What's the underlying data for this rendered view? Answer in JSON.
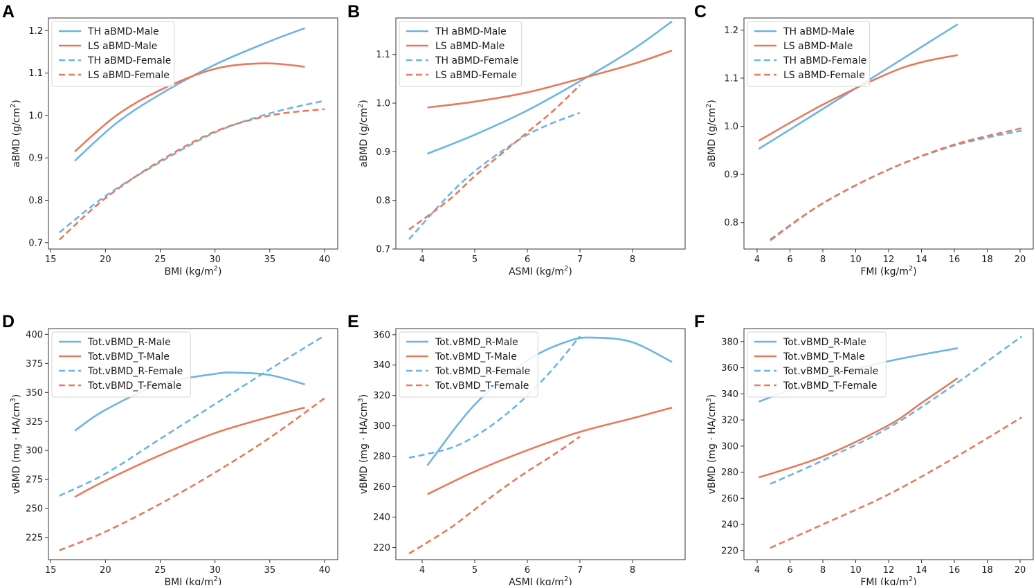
{
  "colors": {
    "blue": "#6cb4e4",
    "orange": "#e8795a"
  },
  "chart_data": [
    {
      "panel": "A",
      "type": "line",
      "xlabel": "BMI (kg/m²)",
      "ylabel": "aBMD (g/cm²)",
      "xlim": [
        14.8,
        41.2
      ],
      "ylim": [
        0.685,
        1.23
      ],
      "xticks": [
        15,
        20,
        25,
        30,
        35,
        40
      ],
      "yticks": [
        0.7,
        0.8,
        0.9,
        1.0,
        1.1,
        1.2
      ],
      "ydecimals": 1,
      "grid": false,
      "legend": "top-left",
      "series": [
        {
          "name": "TH aBMD-Male",
          "color": "blue",
          "dash": false,
          "points": [
            [
              17.2,
              0.893
            ],
            [
              21,
              0.982
            ],
            [
              25,
              1.05
            ],
            [
              30,
              1.12
            ],
            [
              35,
              1.175
            ],
            [
              38.2,
              1.206
            ]
          ]
        },
        {
          "name": "LS aBMD-Male",
          "color": "orange",
          "dash": false,
          "points": [
            [
              17.2,
              0.915
            ],
            [
              21,
              1.0
            ],
            [
              25,
              1.06
            ],
            [
              30,
              1.11
            ],
            [
              34.5,
              1.123
            ],
            [
              38.2,
              1.115
            ]
          ]
        },
        {
          "name": "TH aBMD-Female",
          "color": "blue",
          "dash": true,
          "points": [
            [
              15.8,
              0.724
            ],
            [
              20,
              0.81
            ],
            [
              25,
              0.89
            ],
            [
              30,
              0.96
            ],
            [
              35,
              1.005
            ],
            [
              40,
              1.035
            ]
          ]
        },
        {
          "name": "LS aBMD-Female",
          "color": "orange",
          "dash": true,
          "points": [
            [
              15.8,
              0.707
            ],
            [
              20,
              0.805
            ],
            [
              25,
              0.893
            ],
            [
              30,
              0.962
            ],
            [
              35,
              1.0
            ],
            [
              40,
              1.015
            ]
          ]
        }
      ]
    },
    {
      "panel": "B",
      "type": "line",
      "xlabel": "ASMI (kg/m²)",
      "ylabel": "aBMD (g/cm²)",
      "xlim": [
        3.5,
        9.0
      ],
      "ylim": [
        0.7,
        1.175
      ],
      "xticks": [
        4,
        5,
        6,
        7,
        8
      ],
      "yticks": [
        0.7,
        0.8,
        0.9,
        1.0,
        1.1
      ],
      "ydecimals": 1,
      "grid": false,
      "legend": "top-left",
      "series": [
        {
          "name": "TH aBMD-Male",
          "color": "blue",
          "dash": false,
          "points": [
            [
              4.1,
              0.896
            ],
            [
              5,
              0.935
            ],
            [
              6,
              0.985
            ],
            [
              7,
              1.045
            ],
            [
              8,
              1.11
            ],
            [
              8.75,
              1.168
            ]
          ]
        },
        {
          "name": "LS aBMD-Male",
          "color": "orange",
          "dash": false,
          "points": [
            [
              4.1,
              0.991
            ],
            [
              5,
              1.003
            ],
            [
              6,
              1.022
            ],
            [
              7,
              1.05
            ],
            [
              8,
              1.08
            ],
            [
              8.75,
              1.108
            ]
          ]
        },
        {
          "name": "TH aBMD-Female",
          "color": "blue",
          "dash": true,
          "points": [
            [
              3.75,
              0.72
            ],
            [
              4.5,
              0.81
            ],
            [
              5,
              0.86
            ],
            [
              5.5,
              0.9
            ],
            [
              6,
              0.935
            ],
            [
              6.5,
              0.96
            ],
            [
              7,
              0.98
            ]
          ]
        },
        {
          "name": "LS aBMD-Female",
          "color": "orange",
          "dash": true,
          "points": [
            [
              3.75,
              0.74
            ],
            [
              4.5,
              0.8
            ],
            [
              5,
              0.85
            ],
            [
              5.5,
              0.895
            ],
            [
              6,
              0.94
            ],
            [
              6.5,
              0.985
            ],
            [
              7,
              1.037
            ]
          ]
        }
      ]
    },
    {
      "panel": "C",
      "type": "line",
      "xlabel": "FMI (kg/m²)",
      "ylabel": "aBMD (g/cm²)",
      "xlim": [
        3.2,
        20.8
      ],
      "ylim": [
        0.745,
        1.225
      ],
      "xticks": [
        4,
        6,
        8,
        10,
        12,
        14,
        16,
        18,
        20
      ],
      "yticks": [
        0.8,
        0.9,
        1.0,
        1.1,
        1.2
      ],
      "ydecimals": 1,
      "grid": false,
      "legend": "top-left",
      "series": [
        {
          "name": "TH aBMD-Male",
          "color": "blue",
          "dash": false,
          "points": [
            [
              4.1,
              0.953
            ],
            [
              8,
              1.036
            ],
            [
              12,
              1.122
            ],
            [
              16.2,
              1.212
            ]
          ]
        },
        {
          "name": "LS aBMD-Male",
          "color": "orange",
          "dash": false,
          "points": [
            [
              4.1,
              0.97
            ],
            [
              8,
              1.045
            ],
            [
              12,
              1.11
            ],
            [
              14,
              1.133
            ],
            [
              16.2,
              1.148
            ]
          ]
        },
        {
          "name": "TH aBMD-Female",
          "color": "blue",
          "dash": true,
          "points": [
            [
              4.8,
              0.765
            ],
            [
              8,
              0.84
            ],
            [
              12,
              0.91
            ],
            [
              16,
              0.96
            ],
            [
              20.1,
              0.991
            ]
          ]
        },
        {
          "name": "LS aBMD-Female",
          "color": "orange",
          "dash": true,
          "points": [
            [
              4.8,
              0.763
            ],
            [
              8,
              0.84
            ],
            [
              12,
              0.91
            ],
            [
              16,
              0.962
            ],
            [
              20.1,
              0.996
            ]
          ]
        }
      ]
    },
    {
      "panel": "D",
      "type": "line",
      "xlabel": "BMI (kg/m²)",
      "ylabel": "vBMD (mg · HA/cm³)",
      "xlim": [
        14.8,
        41.2
      ],
      "ylim": [
        206,
        405
      ],
      "xticks": [
        15,
        20,
        25,
        30,
        35,
        40
      ],
      "yticks": [
        225,
        250,
        275,
        300,
        325,
        350,
        375,
        400
      ],
      "ydecimals": 0,
      "grid": false,
      "legend": "top-left",
      "series": [
        {
          "name": "Tot.vBMD_R-Male",
          "color": "blue",
          "dash": false,
          "points": [
            [
              17.2,
              317
            ],
            [
              20,
              335
            ],
            [
              25,
              357
            ],
            [
              30,
              366
            ],
            [
              32,
              367
            ],
            [
              35,
              365
            ],
            [
              38.2,
              357
            ]
          ]
        },
        {
          "name": "Tot.vBMD_T-Male",
          "color": "orange",
          "dash": false,
          "points": [
            [
              17.2,
              260
            ],
            [
              20,
              274
            ],
            [
              25,
              296
            ],
            [
              30,
              315
            ],
            [
              35,
              329
            ],
            [
              38.2,
              337
            ]
          ]
        },
        {
          "name": "Tot.vBMD_R-Female",
          "color": "blue",
          "dash": true,
          "points": [
            [
              15.8,
              261
            ],
            [
              20,
              280
            ],
            [
              25,
              310
            ],
            [
              30,
              340
            ],
            [
              35,
              370
            ],
            [
              40,
              399
            ]
          ]
        },
        {
          "name": "Tot.vBMD_T-Female",
          "color": "orange",
          "dash": true,
          "points": [
            [
              15.8,
              214
            ],
            [
              20,
              230
            ],
            [
              25,
              254
            ],
            [
              30,
              281
            ],
            [
              35,
              311
            ],
            [
              40,
              345
            ]
          ]
        }
      ]
    },
    {
      "panel": "E",
      "type": "line",
      "xlabel": "ASMI (kg/m²)",
      "ylabel": "vBMD (mg · HA/cm³)",
      "xlim": [
        3.5,
        9.0
      ],
      "ylim": [
        212,
        364
      ],
      "xticks": [
        4,
        5,
        6,
        7,
        8
      ],
      "yticks": [
        220,
        240,
        260,
        280,
        300,
        320,
        340,
        360
      ],
      "ydecimals": 0,
      "grid": false,
      "legend": "top-left",
      "series": [
        {
          "name": "Tot.vBMD_R-Male",
          "color": "blue",
          "dash": false,
          "points": [
            [
              4.1,
              274
            ],
            [
              5,
              314
            ],
            [
              6,
              343
            ],
            [
              6.8,
              356
            ],
            [
              7.3,
              358
            ],
            [
              8,
              355
            ],
            [
              8.75,
              342
            ]
          ]
        },
        {
          "name": "Tot.vBMD_T-Male",
          "color": "orange",
          "dash": false,
          "points": [
            [
              4.1,
              255
            ],
            [
              5,
              270
            ],
            [
              6,
              284
            ],
            [
              7,
              296
            ],
            [
              8,
              305
            ],
            [
              8.75,
              312
            ]
          ]
        },
        {
          "name": "Tot.vBMD_R-Female",
          "color": "blue",
          "dash": true,
          "points": [
            [
              3.75,
              279
            ],
            [
              4.5,
              285
            ],
            [
              5,
              293
            ],
            [
              5.5,
              305
            ],
            [
              6,
              320
            ],
            [
              6.5,
              338
            ],
            [
              7,
              359
            ]
          ]
        },
        {
          "name": "Tot.vBMD_T-Female",
          "color": "orange",
          "dash": true,
          "points": [
            [
              3.75,
              216
            ],
            [
              4.5,
              232
            ],
            [
              5,
              245
            ],
            [
              5.5,
              258
            ],
            [
              6,
              270
            ],
            [
              6.5,
              281
            ],
            [
              7,
              293
            ]
          ]
        }
      ]
    },
    {
      "panel": "F",
      "type": "line",
      "xlabel": "FMI (kg/m²)",
      "ylabel": "vBMD (mg · HA/cm³)",
      "xlim": [
        3.2,
        20.8
      ],
      "ylim": [
        213,
        390
      ],
      "xticks": [
        4,
        6,
        8,
        10,
        12,
        14,
        16,
        18,
        20
      ],
      "yticks": [
        220,
        240,
        260,
        280,
        300,
        320,
        340,
        360,
        380
      ],
      "ydecimals": 0,
      "grid": false,
      "legend": "top-left",
      "series": [
        {
          "name": "Tot.vBMD_R-Male",
          "color": "blue",
          "dash": false,
          "points": [
            [
              4.1,
              334
            ],
            [
              8,
              352
            ],
            [
              12,
              365
            ],
            [
              16.2,
              375
            ]
          ]
        },
        {
          "name": "Tot.vBMD_T-Male",
          "color": "orange",
          "dash": false,
          "points": [
            [
              4.1,
              276
            ],
            [
              8,
              292
            ],
            [
              12,
              316
            ],
            [
              14,
              333
            ],
            [
              16.2,
              352
            ]
          ]
        },
        {
          "name": "Tot.vBMD_R-Female",
          "color": "blue",
          "dash": true,
          "points": [
            [
              4.8,
              271
            ],
            [
              8,
              289
            ],
            [
              12,
              314
            ],
            [
              16,
              347
            ],
            [
              20.1,
              384
            ]
          ]
        },
        {
          "name": "Tot.vBMD_T-Female",
          "color": "orange",
          "dash": true,
          "points": [
            [
              4.8,
              222
            ],
            [
              8,
              240
            ],
            [
              12,
              263
            ],
            [
              16,
              291
            ],
            [
              20.1,
              322
            ]
          ]
        }
      ]
    }
  ]
}
